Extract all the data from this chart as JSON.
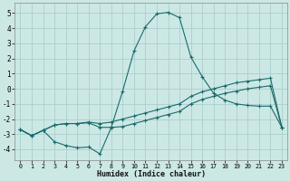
{
  "xlabel": "Humidex (Indice chaleur)",
  "background_color": "#cce8e5",
  "grid_color": "#aacece",
  "line_color": "#1a6b6b",
  "xlim": [
    -0.5,
    23.5
  ],
  "ylim": [
    -4.7,
    5.7
  ],
  "xticks": [
    0,
    1,
    2,
    3,
    4,
    5,
    6,
    7,
    8,
    9,
    10,
    11,
    12,
    13,
    14,
    15,
    16,
    17,
    18,
    19,
    20,
    21,
    22,
    23
  ],
  "yticks": [
    -4,
    -3,
    -2,
    -1,
    0,
    1,
    2,
    3,
    4,
    5
  ],
  "line1_x": [
    0,
    1,
    2,
    3,
    4,
    5,
    6,
    7,
    8,
    9,
    10,
    11,
    12,
    13,
    14,
    15,
    16,
    17,
    18,
    19,
    20,
    21,
    22,
    23
  ],
  "line1_y": [
    -2.7,
    -3.1,
    -2.75,
    -3.5,
    -3.75,
    -3.9,
    -3.85,
    -4.3,
    -2.55,
    -0.15,
    2.5,
    4.1,
    4.95,
    5.05,
    4.7,
    2.1,
    0.8,
    -0.3,
    -0.75,
    -1.0,
    -1.1,
    -1.15,
    -1.15,
    -2.55
  ],
  "line2_x": [
    0,
    1,
    2,
    3,
    4,
    5,
    6,
    7,
    8,
    9,
    10,
    11,
    12,
    13,
    14,
    15,
    16,
    17,
    18,
    19,
    20,
    21,
    22,
    23
  ],
  "line2_y": [
    -2.7,
    -3.1,
    -2.75,
    -2.4,
    -2.3,
    -2.3,
    -2.25,
    -2.55,
    -2.55,
    -2.5,
    -2.3,
    -2.1,
    -1.9,
    -1.7,
    -1.5,
    -1.0,
    -0.7,
    -0.5,
    -0.3,
    -0.15,
    0.0,
    0.1,
    0.2,
    -2.55
  ],
  "line3_x": [
    0,
    1,
    2,
    3,
    4,
    5,
    6,
    7,
    8,
    9,
    10,
    11,
    12,
    13,
    14,
    15,
    16,
    17,
    18,
    19,
    20,
    21,
    22,
    23
  ],
  "line3_y": [
    -2.7,
    -3.1,
    -2.75,
    -2.4,
    -2.3,
    -2.3,
    -2.2,
    -2.3,
    -2.2,
    -2.0,
    -1.8,
    -1.6,
    -1.4,
    -1.2,
    -1.0,
    -0.5,
    -0.2,
    0.0,
    0.2,
    0.4,
    0.5,
    0.6,
    0.7,
    -2.55
  ]
}
